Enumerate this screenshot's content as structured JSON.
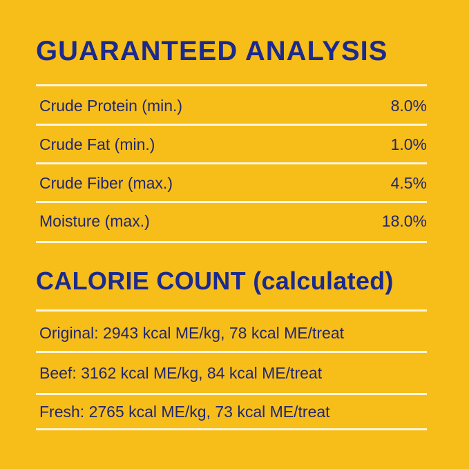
{
  "guaranteed_analysis": {
    "title": "GUARANTEED ANALYSIS",
    "rows": [
      {
        "label": "Crude Protein (min.)",
        "value": "8.0%"
      },
      {
        "label": "Crude Fat (min.)",
        "value": "1.0%"
      },
      {
        "label": "Crude Fiber (max.)",
        "value": "4.5%"
      },
      {
        "label": "Moisture (max.)",
        "value": "18.0%"
      }
    ]
  },
  "calorie_count": {
    "title": "CALORIE COUNT (calculated)",
    "rows": [
      "Original: 2943 kcal ME/kg, 78 kcal ME/treat",
      "Beef: 3162 kcal ME/kg, 84 kcal ME/treat",
      "Fresh: 2765 kcal ME/kg, 73 kcal ME/treat"
    ]
  },
  "colors": {
    "background": "#F7BE1A",
    "heading": "#1B2A8E",
    "text": "#22266E",
    "divider": "#FFF6DC"
  }
}
